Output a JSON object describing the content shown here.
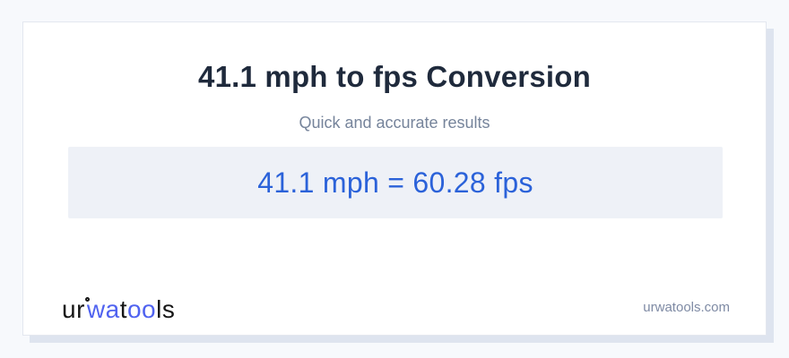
{
  "title": "41.1 mph to fps Conversion",
  "subtitle": "Quick and accurate results",
  "result": {
    "value_from": "41.1",
    "unit_from": "mph",
    "value_to": "60.28",
    "unit_to": "fps",
    "text": "41.1 mph = 60.28 fps"
  },
  "footer": {
    "logo": {
      "part1": "ur",
      "part2": "wa",
      "part3": "t",
      "part4": "oo",
      "part5": "ls"
    },
    "domain": "urwatools.com"
  },
  "colors": {
    "page_bg": "#f7f9fc",
    "card_bg": "#ffffff",
    "card_border": "#e3e7ef",
    "card_shadow": "#dee4ef",
    "title_text": "#1f2a3c",
    "subtitle_text": "#76849b",
    "result_bg": "#eef1f7",
    "result_text": "#2b62d9",
    "logo_dark": "#161616",
    "logo_blue": "#5063f0",
    "domain_text": "#7e8aa4"
  }
}
